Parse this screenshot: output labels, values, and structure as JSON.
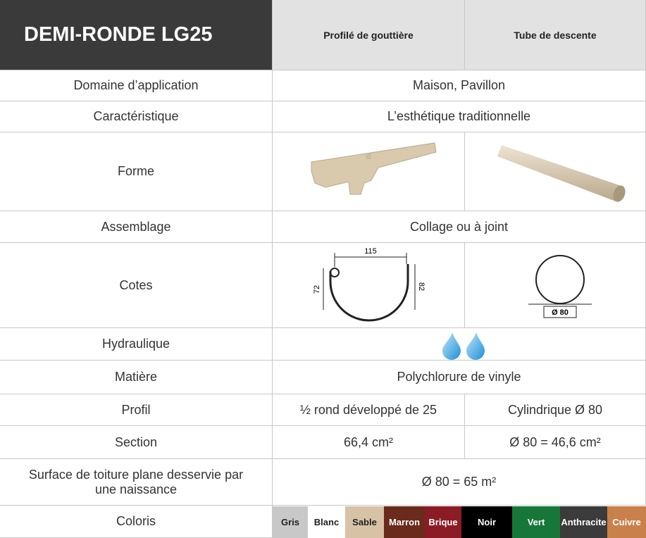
{
  "header": {
    "title": "DEMI-RONDE LG25",
    "columns": [
      "Profilé de gouttière",
      "Tube de descente"
    ]
  },
  "rows": [
    {
      "label": "Domaine d’application",
      "value": "Maison, Pavillon"
    },
    {
      "label": "Caractéristique",
      "value": "L’esthétique traditionnelle"
    },
    {
      "label": "Forme"
    },
    {
      "label": "Assemblage",
      "value": "Collage ou à joint"
    },
    {
      "label": "Cotes",
      "gutter_dimensions": [
        "115",
        "72",
        "82"
      ],
      "pipe_dimension": "Ø 80"
    },
    {
      "label": "Hydraulique"
    },
    {
      "label": "Matière",
      "value": "Polychlorure de vinyle"
    },
    {
      "label": "Profil",
      "cells": [
        "½ rond développé de 25",
        "Cylindrique Ø 80"
      ]
    },
    {
      "label": "Section",
      "cells": [
        "66,4 cm²",
        "Ø 80 = 46,6 cm²"
      ]
    },
    {
      "label": "Surface de toiture plane desservie par une naissance",
      "value": "Ø 80 = 65 m²"
    },
    {
      "label": "Coloris",
      "colors": [
        {
          "name": "Gris",
          "color": "#c8c8c8"
        },
        {
          "name": "Blanc",
          "color": "#ffffff"
        },
        {
          "name": "Sable",
          "color": "#d8c2a6"
        },
        {
          "name": "Marron",
          "color": "#6a2b1c"
        },
        {
          "name": "Brique",
          "color": "#8b1b24"
        },
        {
          "name": "Noir",
          "color": "#000000"
        },
        {
          "name": "Vert",
          "color": "#17773a"
        },
        {
          "name": "Anthracite",
          "color": "#3b3b3b"
        },
        {
          "name": "Cuivre",
          "color": "#c9804a"
        }
      ]
    }
  ]
}
